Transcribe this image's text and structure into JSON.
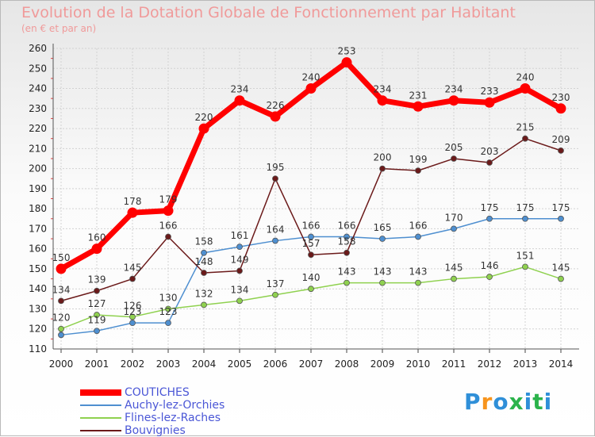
{
  "chart_data": {
    "type": "line",
    "title": "Evolution de la Dotation Globale de Fonctionnement par Habitant",
    "subtitle": "(en € et par an)",
    "xlabel": "",
    "ylabel": "",
    "ylim": [
      110,
      260
    ],
    "yticks": [
      "110",
      "120",
      "130",
      "140",
      "150",
      "160",
      "170",
      "180",
      "190",
      "200",
      "210",
      "220",
      "230",
      "240",
      "250",
      "260"
    ],
    "categories": [
      "2000",
      "2001",
      "2002",
      "2003",
      "2004",
      "2005",
      "2006",
      "2007",
      "2008",
      "2009",
      "2010",
      "2011",
      "2012",
      "2013",
      "2014"
    ],
    "grid": true,
    "legend_position": "bottom-left",
    "series": [
      {
        "name": "Auchy-lez-Orchies",
        "color": "#4e8fd0",
        "values": [
          117,
          119,
          123,
          123,
          158,
          161,
          164,
          166,
          166,
          165,
          166,
          170,
          175,
          175,
          175
        ],
        "labels": [
          "",
          "119",
          "123",
          "123",
          "158",
          "161",
          "164",
          "166",
          "166",
          "165",
          "166",
          "170",
          "175",
          "175",
          "175"
        ]
      },
      {
        "name": "Flines-lez-Raches",
        "color": "#8fd14f",
        "values": [
          120,
          127,
          126,
          130,
          132,
          134,
          137,
          140,
          143,
          143,
          143,
          145,
          146,
          151,
          145
        ],
        "labels": [
          "120",
          "127",
          "126",
          "130",
          "132",
          "134",
          "137",
          "140",
          "143",
          "143",
          "143",
          "145",
          "146",
          "151",
          "145"
        ]
      },
      {
        "name": "Bouvignies",
        "color": "#6b1a1a",
        "values": [
          134,
          139,
          145,
          166,
          148,
          149,
          195,
          157,
          158,
          200,
          199,
          205,
          203,
          215,
          209
        ],
        "labels": [
          "134",
          "139",
          "145",
          "166",
          "148",
          "149",
          "195",
          "157",
          "158",
          "200",
          "199",
          "205",
          "203",
          "215",
          "209"
        ]
      },
      {
        "name": "COUTICHES",
        "color": "#ff0000",
        "values": [
          150,
          160,
          178,
          179,
          220,
          234,
          226,
          240,
          253,
          234,
          231,
          234,
          233,
          240,
          230
        ],
        "labels": [
          "150",
          "160",
          "178",
          "179",
          "220",
          "234",
          "226",
          "240",
          "253",
          "234",
          "231",
          "234",
          "233",
          "240",
          "230"
        ]
      }
    ],
    "legend": [
      {
        "name": "COUTICHES",
        "color": "#ff0000"
      },
      {
        "name": "Auchy-lez-Orchies",
        "color": "#4e8fd0"
      },
      {
        "name": "Flines-lez-Raches",
        "color": "#8fd14f"
      },
      {
        "name": "Bouvignies",
        "color": "#6b1a1a"
      }
    ]
  },
  "logo": {
    "text": "Proxiti",
    "letter_colors": [
      "#2f8fd8",
      "#f7941d",
      "#2f8fd8",
      "#2bb34b",
      "#2f8fd8",
      "#2bb34b",
      "#2f8fd8"
    ]
  }
}
